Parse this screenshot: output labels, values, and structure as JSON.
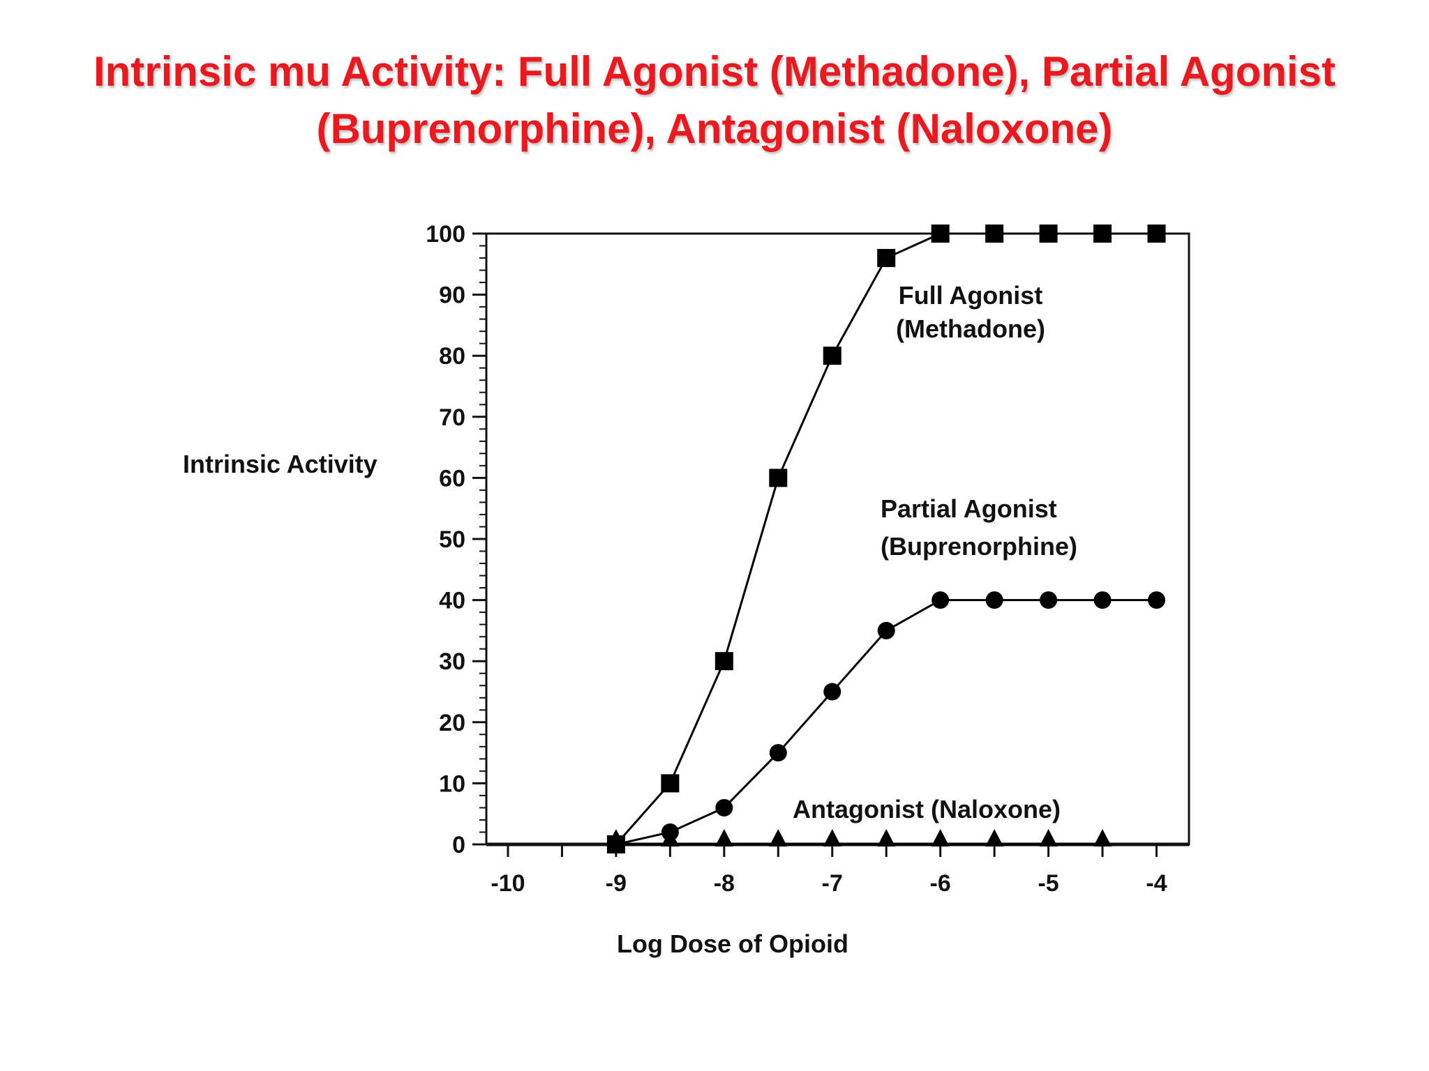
{
  "slide": {
    "title_line1": "Intrinsic mu Activity: Full Agonist (Methadone), Partial Agonist",
    "title_line2": "(Buprenorphine), Antagonist (Naloxone)",
    "title_color": "#e8191f"
  },
  "chart_data": {
    "type": "line",
    "xlabel": "Log Dose of Opioid",
    "ylabel": "Intrinsic Activity",
    "xlim": [
      -10.2,
      -3.7
    ],
    "ylim": [
      0,
      100
    ],
    "x_ticks": [
      -10,
      -9,
      -8,
      -7,
      -6,
      -5,
      -4
    ],
    "x_tick_labels": [
      "-10",
      "-9",
      "-8",
      "-7",
      "-6",
      "-5",
      "-4"
    ],
    "y_ticks": [
      0,
      10,
      20,
      30,
      40,
      50,
      60,
      70,
      80,
      90,
      100
    ],
    "y_tick_labels": [
      "0",
      "10",
      "20",
      "30",
      "40",
      "50",
      "60",
      "70",
      "80",
      "90",
      "100"
    ],
    "grid": false,
    "series": [
      {
        "label_line1": "Full Agonist",
        "label_line2": "(Methadone)",
        "marker": "square",
        "color": "#000000",
        "x": [
          -9,
          -8.5,
          -8,
          -7.5,
          -7,
          -6.5,
          -6,
          -5.5,
          -5,
          -4.5,
          -4
        ],
        "y": [
          0,
          10,
          30,
          60,
          80,
          96,
          100,
          100,
          100,
          100,
          100
        ]
      },
      {
        "label_line1": "Partial Agonist",
        "label_line2": "(Buprenorphine)",
        "marker": "circle",
        "color": "#000000",
        "x": [
          -9,
          -8.5,
          -8,
          -7.5,
          -7,
          -6.5,
          -6,
          -5.5,
          -5,
          -4.5,
          -4
        ],
        "y": [
          0,
          2,
          6,
          15,
          25,
          35,
          40,
          40,
          40,
          40,
          40
        ]
      },
      {
        "label_line1": "Antagonist (Naloxone)",
        "label_line2": "",
        "marker": "triangle",
        "color": "#000000",
        "x": [
          -9,
          -8.5,
          -8,
          -7.5,
          -7,
          -6.5,
          -6,
          -5.5,
          -5,
          -4.5
        ],
        "y": [
          0,
          0,
          0,
          0,
          0,
          0,
          0,
          0,
          0,
          0
        ]
      }
    ]
  }
}
